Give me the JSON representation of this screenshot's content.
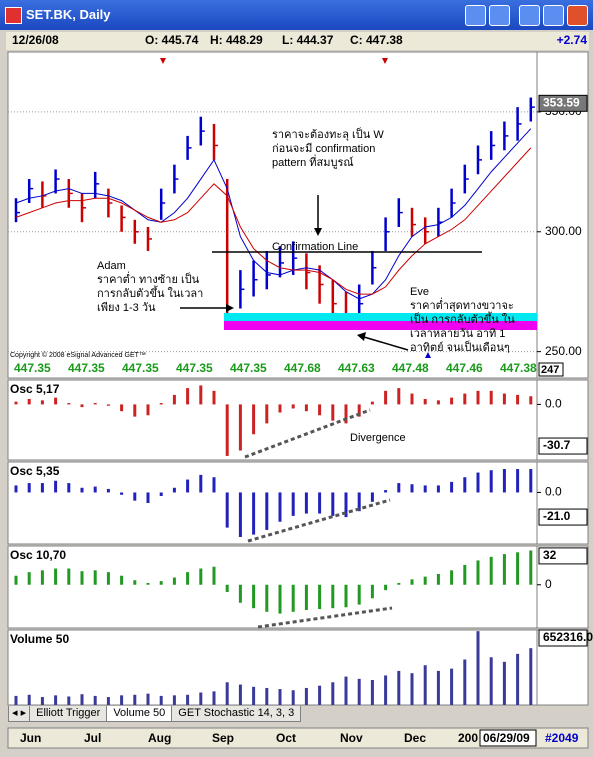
{
  "window": {
    "title": "SET.BK, Daily"
  },
  "info": {
    "date": "12/26/08",
    "open": "O: 445.74",
    "high": "H: 448.29",
    "low": "L: 444.37",
    "close": "C: 447.38",
    "change": "+2.74"
  },
  "readouts": [
    "447.35",
    "447.35",
    "447.35",
    "447.35",
    "447.35",
    "447.68",
    "447.63",
    "447.48",
    "447.46",
    "447.38"
  ],
  "readout_box": "247",
  "copyright": "Copyright © 2008 eSignal Advanced GET™",
  "annotations": {
    "w_note": [
      "ราคาจะต้องทะลุ เป็น W",
      "ก่อนจะมี confirmation",
      "pattern ที่สมบูรณ์"
    ],
    "confirmation": "Confirmation Line",
    "adam": [
      "Adam",
      "ราคาต่ำ ทางซ้าย เป็น",
      "การกลับตัวขึ้น ในเวลา",
      "เพียง 1-3 วัน"
    ],
    "eve": [
      "Eve",
      "ราคาต่ำสุดทางขวาจะ",
      "เป็น การกลับตัวขึ้น ใน",
      "เวลาหลายวัน อาทิ 1",
      "อาทิตย์ จนเป็นเดือนๆ"
    ]
  },
  "tabs": [
    "Elliott Trigger",
    "Volume 50",
    "GET Stochastic 14, 3, 3"
  ],
  "time_axis": {
    "months": [
      "Jun",
      "Jul",
      "Aug",
      "Sep",
      "Oct",
      "Nov",
      "Dec"
    ],
    "year": "200",
    "date_box": "06/29/09",
    "count": "#2049"
  },
  "chart_data": [
    {
      "type": "ohlc",
      "high": [
        314,
        322,
        321,
        326,
        322,
        316,
        325,
        318,
        311,
        305,
        302,
        318,
        328,
        340,
        348,
        345,
        322,
        284,
        288,
        292,
        294,
        296,
        291,
        286,
        280,
        275,
        278,
        292,
        306,
        314,
        310,
        306,
        310,
        318,
        328,
        336,
        342,
        346,
        352,
        356
      ],
      "low": [
        304,
        312,
        310,
        316,
        310,
        304,
        314,
        306,
        300,
        295,
        292,
        305,
        316,
        330,
        336,
        330,
        264,
        268,
        273,
        276,
        281,
        282,
        276,
        270,
        264,
        260,
        262,
        278,
        292,
        302,
        298,
        295,
        298,
        306,
        316,
        324,
        330,
        334,
        338,
        346
      ],
      "close": [
        308,
        318,
        315,
        322,
        316,
        310,
        320,
        312,
        306,
        300,
        297,
        312,
        322,
        335,
        342,
        336,
        268,
        276,
        280,
        282,
        287,
        289,
        283,
        278,
        270,
        265,
        270,
        285,
        300,
        308,
        303,
        300,
        304,
        312,
        322,
        330,
        336,
        340,
        345,
        352
      ],
      "up_color": "#0000cc",
      "down_color": "#cc0000",
      "lines": [
        {
          "color": "#0000cc",
          "values": [
            312,
            314,
            315,
            317,
            318,
            316,
            316,
            315,
            313,
            309,
            305,
            304,
            308,
            314,
            322,
            330,
            318,
            298,
            288,
            283,
            282,
            284,
            285,
            284,
            280,
            275,
            272,
            274,
            280,
            290,
            298,
            302,
            303,
            306,
            311,
            318,
            325,
            331,
            337,
            343
          ]
        },
        {
          "color": "#cc0000",
          "values": [
            306,
            308,
            310,
            312,
            313,
            313,
            314,
            314,
            312,
            309,
            306,
            304,
            305,
            308,
            314,
            320,
            315,
            302,
            293,
            288,
            285,
            284,
            284,
            283,
            280,
            276,
            274,
            274,
            277,
            284,
            290,
            295,
            298,
            301,
            305,
            311,
            317,
            323,
            329,
            335
          ]
        }
      ],
      "ylim": [
        239,
        375
      ],
      "yticks": [
        {
          "value": 250,
          "label": "250.00"
        },
        {
          "value": 300,
          "label": "300.00"
        },
        {
          "value": 350,
          "label": "350.00"
        }
      ],
      "grid": true,
      "last": 353.59
    },
    {
      "type": "bar",
      "title": "Osc 5,17",
      "color": "#cc2222",
      "values": [
        2,
        4,
        3,
        5,
        1,
        -2,
        1,
        -1,
        -5,
        -9,
        -8,
        1,
        7,
        12,
        14,
        10,
        -38,
        -34,
        -22,
        -14,
        -6,
        -3,
        -5,
        -8,
        -12,
        -14,
        -9,
        2,
        10,
        12,
        8,
        4,
        3,
        5,
        8,
        10,
        10,
        8,
        7,
        6
      ],
      "ylim": [
        -41,
        18
      ],
      "yticks": [
        {
          "value": 0,
          "label": "0.0"
        }
      ],
      "last": {
        "value": -30.7,
        "label": "-30.7"
      },
      "annotation": "Divergence"
    },
    {
      "type": "bar",
      "title": "Osc 5,35",
      "color": "#2222bb",
      "values": [
        6,
        8,
        8,
        10,
        8,
        4,
        5,
        3,
        -2,
        -7,
        -9,
        -3,
        4,
        11,
        15,
        13,
        -30,
        -38,
        -36,
        -32,
        -25,
        -20,
        -18,
        -18,
        -20,
        -21,
        -16,
        -8,
        2,
        8,
        7,
        6,
        6,
        9,
        13,
        17,
        19,
        20,
        20,
        20
      ],
      "ylim": [
        -44,
        26
      ],
      "yticks": [
        {
          "value": 0,
          "label": "0.0"
        }
      ],
      "last": {
        "value": -21,
        "label": "-21.0"
      }
    },
    {
      "type": "bar",
      "title": "Osc 10,70",
      "color": "#229922",
      "values": [
        10,
        14,
        16,
        18,
        18,
        15,
        16,
        14,
        10,
        5,
        2,
        4,
        8,
        14,
        18,
        20,
        -8,
        -20,
        -26,
        -30,
        -32,
        -30,
        -28,
        -27,
        -26,
        -25,
        -22,
        -15,
        -6,
        2,
        6,
        9,
        12,
        16,
        22,
        27,
        31,
        34,
        36,
        38
      ],
      "ylim": [
        -48,
        43
      ],
      "yticks": [
        0
      ],
      "last": 32
    },
    {
      "type": "bar",
      "title": "Volume 50",
      "color": "#3a3a9a",
      "values": [
        80000,
        90000,
        70000,
        85000,
        75000,
        95000,
        80000,
        70000,
        85000,
        90000,
        100000,
        80000,
        85000,
        90000,
        110000,
        120000,
        200000,
        180000,
        160000,
        150000,
        140000,
        130000,
        150000,
        170000,
        200000,
        250000,
        230000,
        220000,
        260000,
        300000,
        280000,
        350000,
        300000,
        320000,
        400000,
        650000,
        420000,
        380000,
        450000,
        500000
      ],
      "ylim": [
        0,
        660000
      ],
      "yticks": [],
      "last": {
        "value": 652316,
        "label": "652316.0"
      }
    }
  ]
}
